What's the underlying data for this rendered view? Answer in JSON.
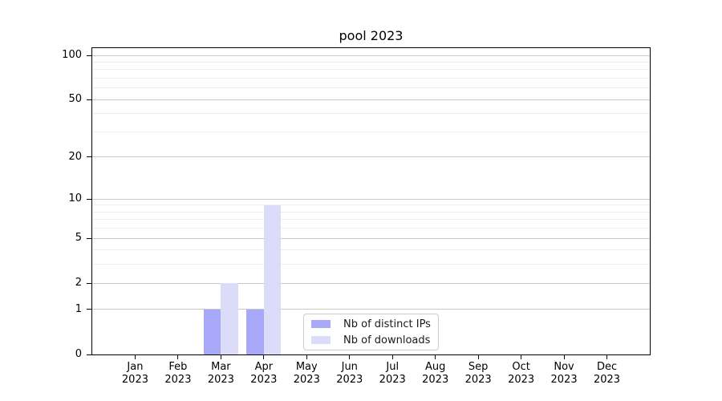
{
  "title": "pool 2023",
  "chart_data": {
    "type": "bar",
    "title": "pool 2023",
    "categories": [
      "Jan 2023",
      "Feb 2023",
      "Mar 2023",
      "Apr 2023",
      "May 2023",
      "Jun 2023",
      "Jul 2023",
      "Aug 2023",
      "Sep 2023",
      "Oct 2023",
      "Nov 2023",
      "Dec 2023"
    ],
    "series": [
      {
        "name": "Nb of distinct IPs",
        "color": "#a8a8f8",
        "values": [
          0,
          0,
          1,
          1,
          0,
          0,
          0,
          0,
          0,
          0,
          0,
          0
        ]
      },
      {
        "name": "Nb of downloads",
        "color": "#dcdcf9",
        "values": [
          0,
          0,
          2,
          9,
          0,
          0,
          0,
          0,
          0,
          0,
          0,
          0
        ]
      }
    ],
    "xlabel": "",
    "ylabel": "",
    "yscale": "log1p",
    "ylim": [
      0,
      100
    ],
    "y_ticks": [
      0,
      1,
      2,
      5,
      10,
      20,
      50,
      100
    ],
    "y_minor_gridlines": [
      3,
      4,
      6,
      7,
      8,
      9,
      30,
      40,
      60,
      70,
      80,
      90
    ],
    "grid": "horizontal",
    "legend_position": "bottom-center-inside"
  },
  "colors": {
    "bar_distinct_ips": "#a8a8f8",
    "bar_downloads": "#dcdcf9",
    "grid_major": "#c9c9c9",
    "grid_minor": "#ededed",
    "axis": "#000000",
    "legend_border": "#cccccc",
    "text": "#000000"
  }
}
